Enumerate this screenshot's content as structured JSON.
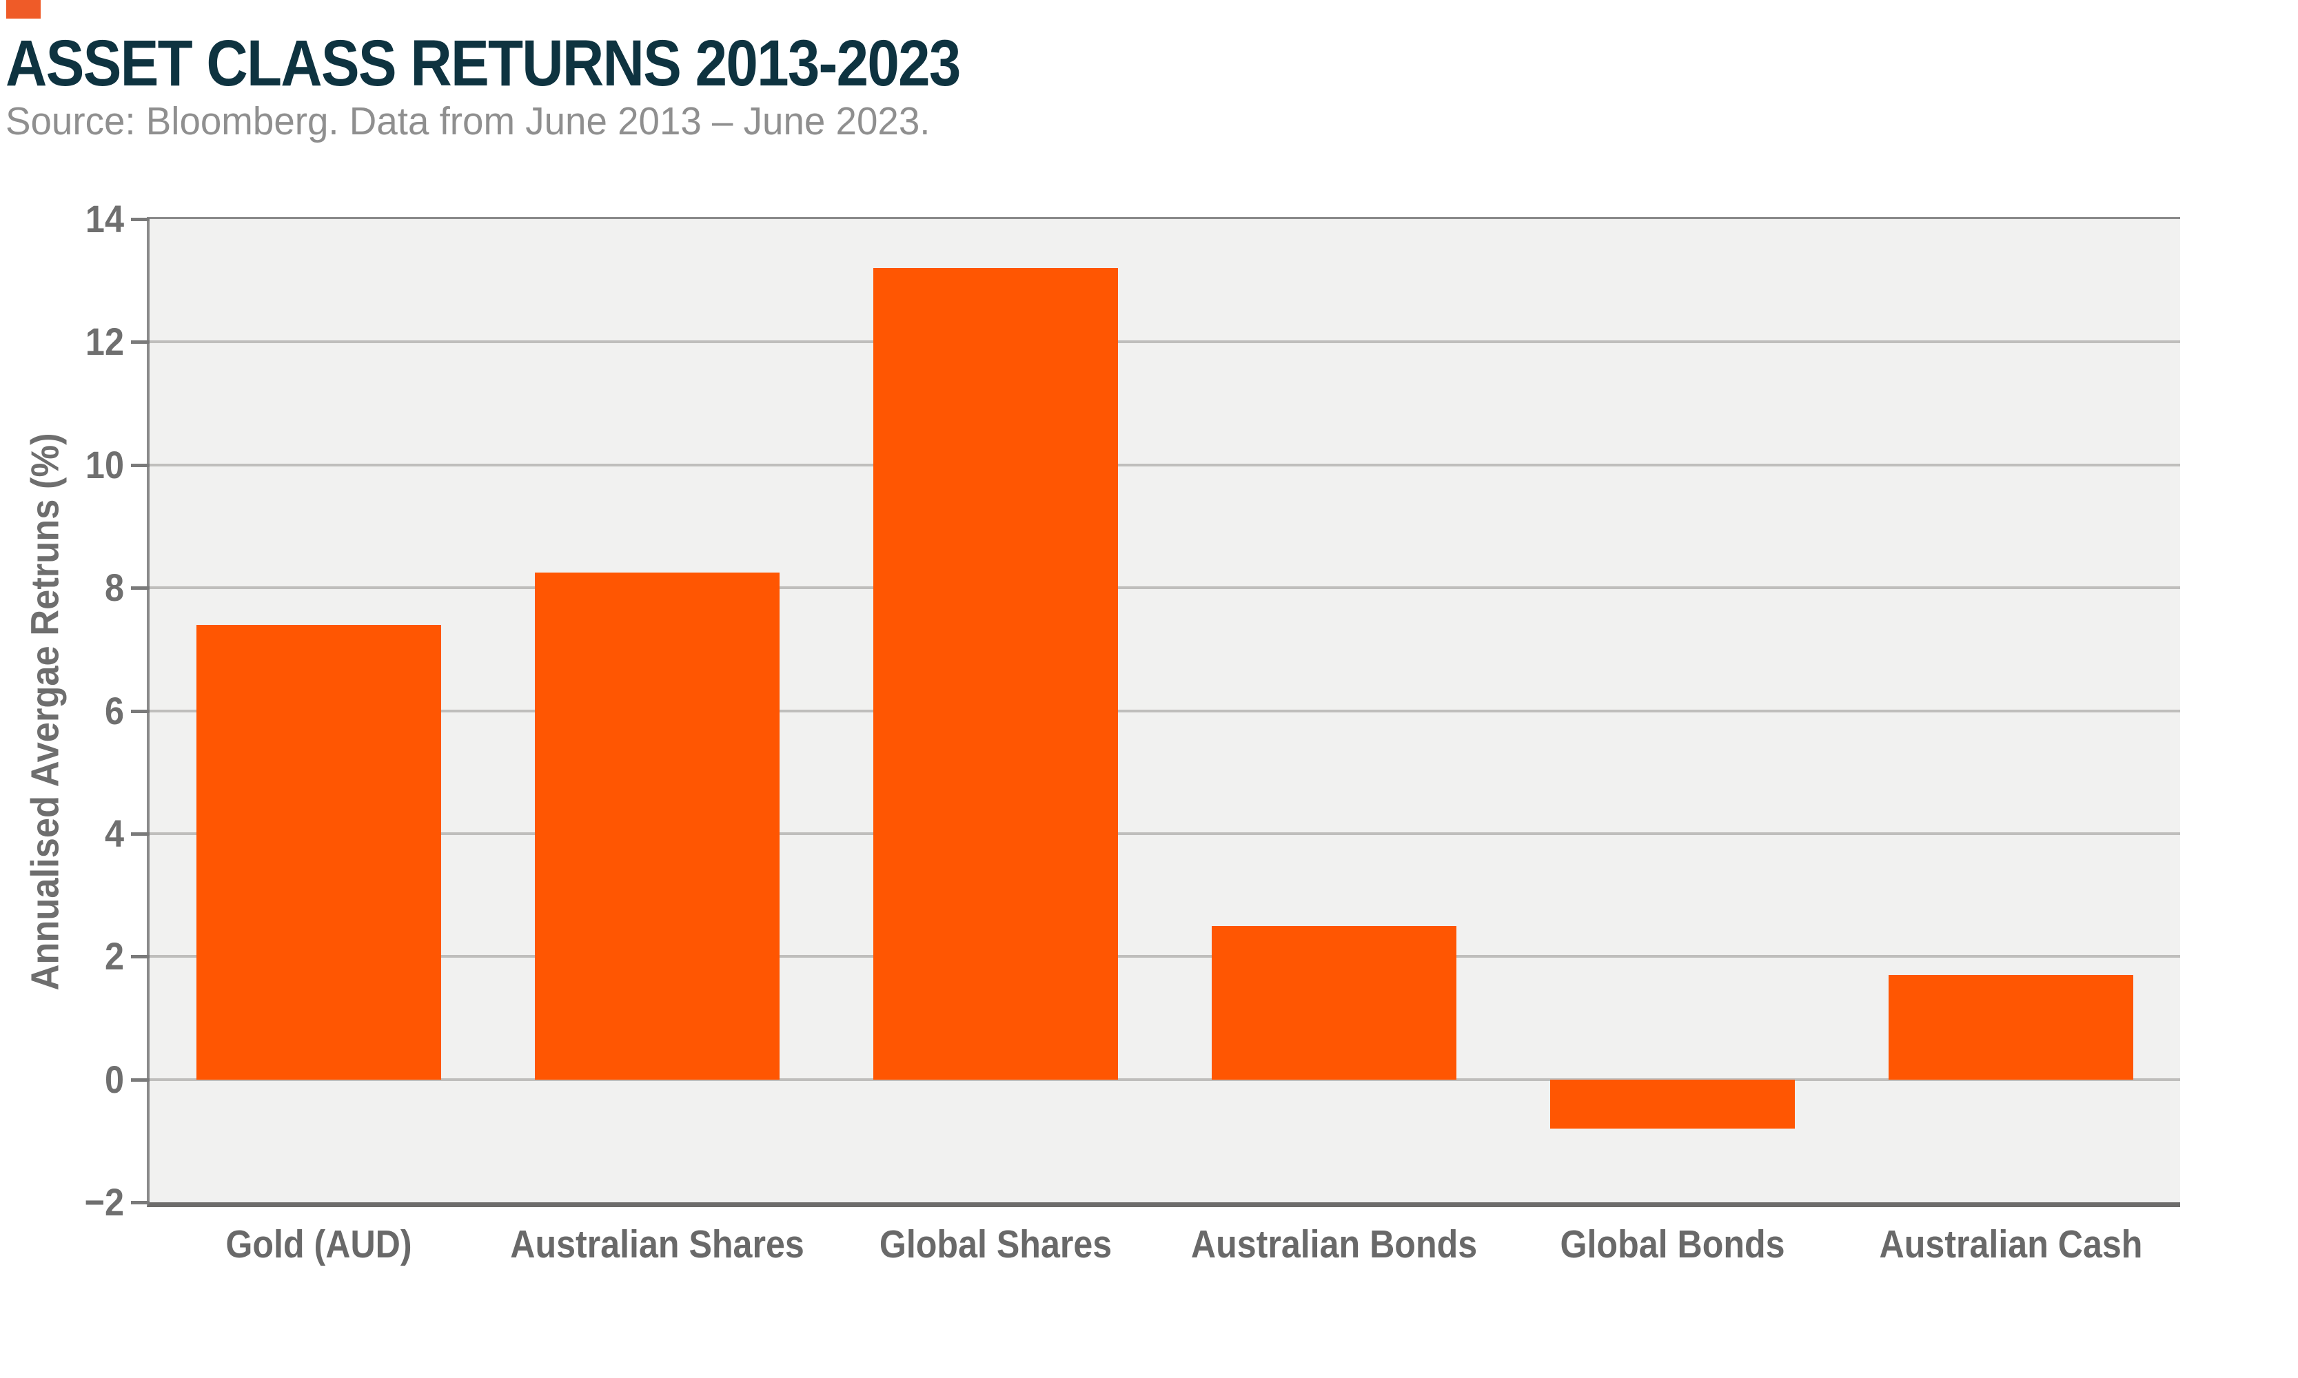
{
  "brand": {
    "logo_square_color": "#EF5B28"
  },
  "header": {
    "title": "ASSET CLASS RETURNS 2013-2023",
    "subtitle": "Source: Bloomberg. Data from June 2013 – June 2023.",
    "title_color": "#0E3340",
    "subtitle_color": "#8F8F8F"
  },
  "chart_data": {
    "type": "bar",
    "title": "ASSET CLASS RETURNS 2013-2023",
    "subtitle": "Source: Bloomberg. Data from June 2013 – June 2023.",
    "categories": [
      "Gold (AUD)",
      "Australian Shares",
      "Global Shares",
      "Australian Bonds",
      "Global Bonds",
      "Australian Cash"
    ],
    "values": [
      7.4,
      8.25,
      13.2,
      2.5,
      -0.8,
      1.7
    ],
    "xlabel": "",
    "ylabel": "Annualised Avergae Retruns (%)",
    "ylim": [
      -2,
      14
    ],
    "yticks": [
      14,
      12,
      10,
      8,
      6,
      4,
      2,
      0,
      -2
    ],
    "grid": true,
    "legend": false,
    "bar_color": "#FF5602",
    "plot_bg": "#F1F1F0",
    "gridline_color": "#BFBEBC",
    "tick_mark_color": "#7A7A7A",
    "tick_label_color": "#6F6F6F",
    "x_label_color": "#696969",
    "y_axis_title_color": "#6E6E6E"
  }
}
